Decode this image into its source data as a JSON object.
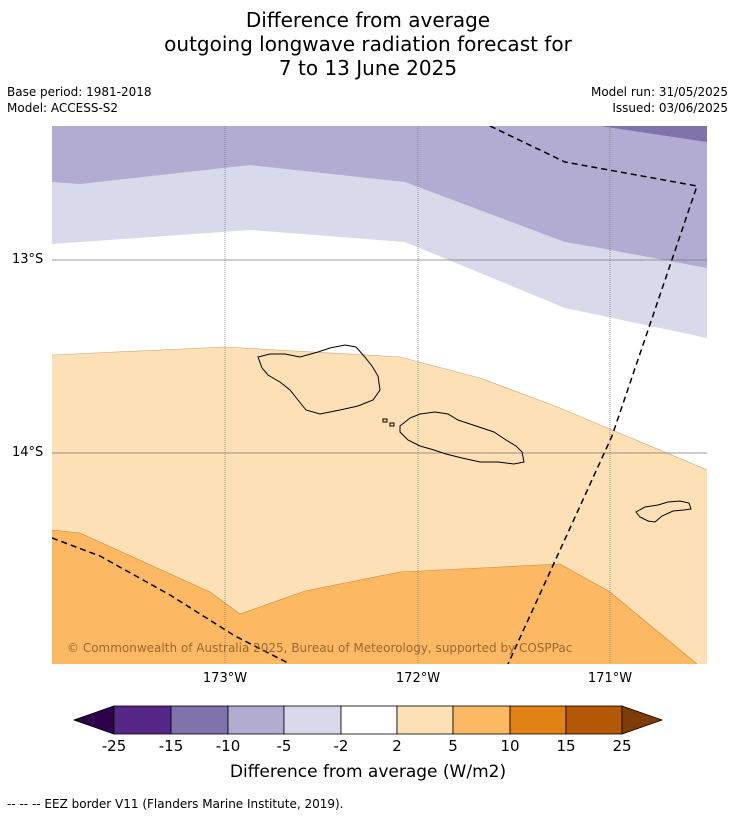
{
  "title": {
    "line1": "Difference from average",
    "line2": "outgoing longwave radiation forecast for",
    "line3": "7 to 13 June 2025"
  },
  "meta": {
    "base_period": "Base period: 1981-2018",
    "model": "Model: ACCESS-S2",
    "model_run": "Model run: 31/05/2025",
    "issued": "Issued: 03/06/2025"
  },
  "map": {
    "lat_labels": [
      "13°S",
      "14°S"
    ],
    "lon_labels": [
      "173°W",
      "172°W",
      "171°W"
    ],
    "copyright": "© Commonwealth of Australia 2025, Bureau of Meteorology, supported by COSPPac",
    "colors": {
      "purple_dark": "#8073ac",
      "purple_mid": "#b2abd2",
      "purple_light": "#d8daeb",
      "white": "#ffffff",
      "orange_light": "#fee0b6",
      "orange_mid": "#fdb863"
    }
  },
  "colorbar": {
    "ticks": [
      "-25",
      "-15",
      "-10",
      "-5",
      "-2",
      "2",
      "5",
      "10",
      "15",
      "25"
    ],
    "colors": [
      "#2d004b",
      "#542788",
      "#8073ac",
      "#b2abd2",
      "#d8daeb",
      "#ffffff",
      "#fee0b6",
      "#fdb863",
      "#e08214",
      "#b35806",
      "#7f3b08"
    ],
    "label": "Difference from average (W/m2)"
  },
  "footer": {
    "eez_note": "--  --  -- EEZ border V11 (Flanders Marine Institute, 2019)."
  }
}
